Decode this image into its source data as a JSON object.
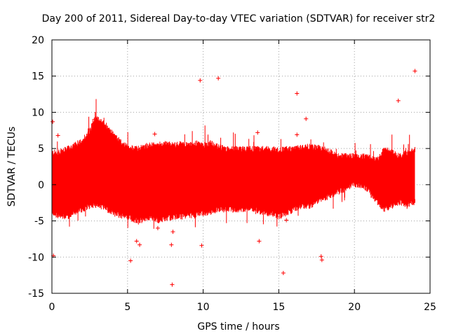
{
  "chart_data": {
    "type": "scatter",
    "title": "Day 200 of 2011, Sidereal Day-to-day VTEC variation (SDTVAR) for receiver str2",
    "xlabel": "GPS time / hours",
    "ylabel": "SDTVAR / TECUs",
    "xlim": [
      0,
      25
    ],
    "ylim": [
      -15,
      20
    ],
    "x_ticks": [
      0,
      5,
      10,
      15,
      20,
      25
    ],
    "y_ticks": [
      -15,
      -10,
      -5,
      0,
      5,
      10,
      15,
      20
    ],
    "x_tick_labels": [
      "0",
      "5",
      "10",
      "15",
      "20",
      "25"
    ],
    "y_tick_labels": [
      "-15",
      "-10",
      "-5",
      "0",
      "5",
      "10",
      "15",
      "20"
    ],
    "grid": true,
    "marker": "+",
    "series_color": "#ff0000",
    "envelope": {
      "name": "dense scatter band",
      "x": [
        0.0,
        0.5,
        1.0,
        1.5,
        2.0,
        2.5,
        2.8,
        3.2,
        3.6,
        4.0,
        4.5,
        5.0,
        5.5,
        6.0,
        6.5,
        7.0,
        7.5,
        8.0,
        8.5,
        9.0,
        9.5,
        10.0,
        10.5,
        11.0,
        11.5,
        12.0,
        12.5,
        13.0,
        13.5,
        14.0,
        14.5,
        15.0,
        15.5,
        16.0,
        16.5,
        17.0,
        17.5,
        18.0,
        18.5,
        19.0,
        19.5,
        20.0,
        20.5,
        21.0,
        21.5,
        22.0,
        22.5,
        23.0,
        23.5,
        24.0
      ],
      "upper": [
        4.5,
        4.5,
        5.0,
        5.5,
        6.2,
        7.5,
        9.2,
        9.0,
        8.3,
        7.2,
        6.0,
        5.3,
        5.0,
        5.2,
        5.5,
        5.5,
        5.8,
        5.5,
        5.7,
        5.5,
        5.8,
        5.5,
        5.8,
        5.3,
        5.0,
        5.0,
        5.0,
        5.0,
        5.0,
        5.0,
        5.0,
        4.8,
        5.0,
        5.0,
        5.2,
        5.3,
        5.2,
        5.0,
        4.5,
        4.0,
        4.0,
        4.0,
        4.0,
        3.8,
        3.5,
        5.0,
        4.5,
        4.0,
        4.5,
        5.0
      ],
      "lower": [
        -3.8,
        -4.5,
        -4.5,
        -4.0,
        -3.5,
        -3.0,
        -2.8,
        -3.0,
        -3.5,
        -4.0,
        -4.3,
        -4.5,
        -5.0,
        -5.0,
        -4.5,
        -5.0,
        -4.8,
        -4.5,
        -4.5,
        -4.3,
        -4.3,
        -4.0,
        -3.8,
        -3.5,
        -3.5,
        -3.5,
        -3.5,
        -3.3,
        -3.5,
        -4.0,
        -4.0,
        -4.5,
        -4.0,
        -3.5,
        -3.0,
        -3.0,
        -2.5,
        -2.0,
        -1.5,
        -1.0,
        -0.5,
        0.0,
        -0.2,
        -1.0,
        -2.5,
        -3.5,
        -3.0,
        -2.5,
        -2.8,
        -2.5
      ]
    },
    "outliers": {
      "x": [
        0.05,
        0.1,
        0.4,
        2.8,
        5.2,
        5.6,
        5.8,
        6.8,
        7.0,
        7.9,
        7.95,
        8.0,
        9.8,
        9.9,
        11.0,
        13.6,
        13.7,
        15.3,
        15.5,
        16.2,
        16.2,
        16.8,
        17.8,
        17.85,
        22.9,
        24.0
      ],
      "y": [
        8.7,
        -9.8,
        6.8,
        9.0,
        -10.5,
        -7.8,
        -8.3,
        7.0,
        -6.0,
        -8.3,
        -13.8,
        -6.5,
        14.4,
        -8.4,
        14.7,
        7.2,
        -7.8,
        -12.2,
        -4.9,
        12.6,
        6.9,
        9.1,
        -9.9,
        -10.4,
        11.6,
        15.7
      ]
    }
  }
}
